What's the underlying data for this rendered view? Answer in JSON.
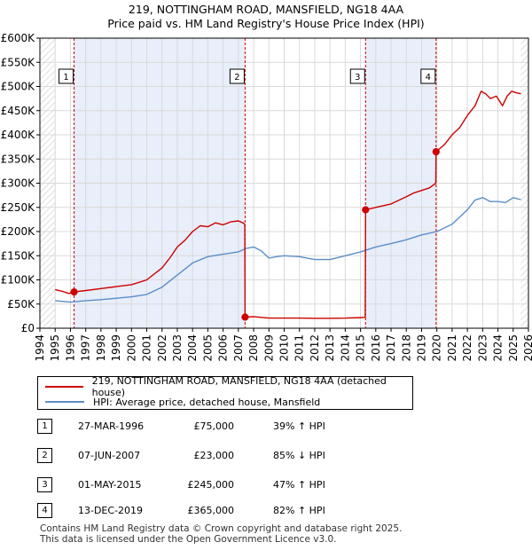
{
  "header": {
    "title": "219, NOTTINGHAM ROAD, MANSFIELD, NG18 4AA",
    "subtitle": "Price paid vs. HM Land Registry's House Price Index (HPI)"
  },
  "colors": {
    "property_line": "#cc0000",
    "hpi_line": "#5b8ec8",
    "shade": "#e8eefa",
    "hatch": "#c8c8c8",
    "grid": "#d9d9d9",
    "vline": "#cc0000"
  },
  "chart_data": {
    "type": "line",
    "title": "219, NOTTINGHAM ROAD, MANSFIELD, NG18 4AA",
    "subtitle": "Price paid vs. HM Land Registry's House Price Index (HPI)",
    "xlim": [
      1994,
      2026
    ],
    "ylim": [
      0,
      600000
    ],
    "x_ticks": [
      1994,
      1995,
      1996,
      1997,
      1998,
      1999,
      2000,
      2001,
      2002,
      2003,
      2004,
      2005,
      2006,
      2007,
      2008,
      2009,
      2010,
      2011,
      2012,
      2013,
      2014,
      2015,
      2016,
      2017,
      2018,
      2019,
      2020,
      2021,
      2022,
      2023,
      2024,
      2025,
      2026
    ],
    "y_ticks": [
      {
        "value": 0,
        "label": "£0"
      },
      {
        "value": 50000,
        "label": "£50K"
      },
      {
        "value": 100000,
        "label": "£100K"
      },
      {
        "value": 150000,
        "label": "£150K"
      },
      {
        "value": 200000,
        "label": "£200K"
      },
      {
        "value": 250000,
        "label": "£250K"
      },
      {
        "value": 300000,
        "label": "£300K"
      },
      {
        "value": 350000,
        "label": "£350K"
      },
      {
        "value": 400000,
        "label": "£400K"
      },
      {
        "value": 450000,
        "label": "£450K"
      },
      {
        "value": 500000,
        "label": "£500K"
      },
      {
        "value": 550000,
        "label": "£550K"
      },
      {
        "value": 600000,
        "label": "£600K"
      }
    ],
    "data_start": 1995,
    "data_end": 2025.5,
    "shaded_ranges": [
      [
        1996.24,
        2007.44
      ],
      [
        2015.33,
        2019.95
      ]
    ],
    "series": [
      {
        "name": "219, NOTTINGHAM ROAD, MANSFIELD, NG18 4AA (detached house)",
        "color": "#cc0000",
        "points": [
          [
            1995.0,
            80000
          ],
          [
            1995.5,
            76000
          ],
          [
            1995.9,
            72000
          ],
          [
            1996.24,
            75000
          ],
          [
            1997.0,
            78000
          ],
          [
            1998.0,
            82000
          ],
          [
            1999.0,
            86000
          ],
          [
            2000.0,
            90000
          ],
          [
            2001.0,
            100000
          ],
          [
            2002.0,
            125000
          ],
          [
            2002.5,
            145000
          ],
          [
            2003.0,
            168000
          ],
          [
            2003.5,
            182000
          ],
          [
            2004.0,
            200000
          ],
          [
            2004.5,
            212000
          ],
          [
            2005.0,
            210000
          ],
          [
            2005.5,
            218000
          ],
          [
            2006.0,
            214000
          ],
          [
            2006.5,
            220000
          ],
          [
            2007.0,
            222000
          ],
          [
            2007.3,
            218000
          ],
          [
            2007.42,
            215000
          ],
          [
            2007.44,
            23000
          ],
          [
            2008.0,
            24000
          ],
          [
            2009.0,
            21000
          ],
          [
            2010.0,
            21000
          ],
          [
            2011.0,
            21000
          ],
          [
            2012.0,
            20500
          ],
          [
            2013.0,
            20500
          ],
          [
            2014.0,
            21000
          ],
          [
            2015.0,
            22000
          ],
          [
            2015.31,
            22500
          ],
          [
            2015.33,
            245000
          ],
          [
            2016.0,
            250000
          ],
          [
            2017.0,
            257000
          ],
          [
            2018.0,
            272000
          ],
          [
            2018.5,
            280000
          ],
          [
            2019.0,
            285000
          ],
          [
            2019.5,
            290000
          ],
          [
            2019.93,
            300000
          ],
          [
            2019.95,
            365000
          ],
          [
            2020.5,
            380000
          ],
          [
            2021.0,
            400000
          ],
          [
            2021.5,
            415000
          ],
          [
            2022.0,
            440000
          ],
          [
            2022.5,
            460000
          ],
          [
            2022.9,
            490000
          ],
          [
            2023.2,
            485000
          ],
          [
            2023.5,
            475000
          ],
          [
            2023.9,
            480000
          ],
          [
            2024.3,
            460000
          ],
          [
            2024.6,
            480000
          ],
          [
            2024.9,
            490000
          ],
          [
            2025.2,
            487000
          ],
          [
            2025.5,
            485000
          ]
        ]
      },
      {
        "name": "HPI: Average price, detached house, Mansfield",
        "color": "#5b8ec8",
        "points": [
          [
            1995.0,
            57000
          ],
          [
            1996.0,
            54000
          ],
          [
            1997.0,
            57000
          ],
          [
            1998.0,
            59000
          ],
          [
            1999.0,
            62000
          ],
          [
            2000.0,
            65000
          ],
          [
            2001.0,
            70000
          ],
          [
            2002.0,
            85000
          ],
          [
            2003.0,
            110000
          ],
          [
            2004.0,
            135000
          ],
          [
            2005.0,
            148000
          ],
          [
            2006.0,
            153000
          ],
          [
            2007.0,
            158000
          ],
          [
            2007.5,
            165000
          ],
          [
            2008.0,
            168000
          ],
          [
            2008.5,
            160000
          ],
          [
            2009.0,
            145000
          ],
          [
            2009.5,
            148000
          ],
          [
            2010.0,
            150000
          ],
          [
            2011.0,
            148000
          ],
          [
            2012.0,
            142000
          ],
          [
            2013.0,
            142000
          ],
          [
            2014.0,
            150000
          ],
          [
            2015.0,
            158000
          ],
          [
            2016.0,
            168000
          ],
          [
            2017.0,
            175000
          ],
          [
            2018.0,
            183000
          ],
          [
            2019.0,
            193000
          ],
          [
            2020.0,
            200000
          ],
          [
            2021.0,
            215000
          ],
          [
            2022.0,
            245000
          ],
          [
            2022.5,
            265000
          ],
          [
            2023.0,
            270000
          ],
          [
            2023.5,
            262000
          ],
          [
            2024.0,
            262000
          ],
          [
            2024.5,
            260000
          ],
          [
            2025.0,
            270000
          ],
          [
            2025.5,
            266000
          ]
        ]
      }
    ],
    "transactions": [
      {
        "id": "1",
        "date": "27-MAR-1996",
        "x": 1996.24,
        "price": 75000,
        "price_label": "£75,000",
        "hpi": "39% ↑ HPI"
      },
      {
        "id": "2",
        "date": "07-JUN-2007",
        "x": 2007.44,
        "price": 23000,
        "price_label": "£23,000",
        "hpi": "85% ↓ HPI"
      },
      {
        "id": "3",
        "date": "01-MAY-2015",
        "x": 2015.33,
        "price": 245000,
        "price_label": "£245,000",
        "hpi": "47% ↑ HPI"
      },
      {
        "id": "4",
        "date": "13-DEC-2019",
        "x": 2019.95,
        "price": 365000,
        "price_label": "£365,000",
        "hpi": "82% ↑ HPI"
      }
    ],
    "box_labels": [
      "1",
      "2",
      "3",
      "4"
    ]
  },
  "legend": {
    "property_label": "219, NOTTINGHAM ROAD, MANSFIELD, NG18 4AA (detached house)",
    "hpi_label": "HPI: Average price, detached house, Mansfield"
  },
  "footer": {
    "line1": "Contains HM Land Registry data © Crown copyright and database right 2025.",
    "line2": "This data is licensed under the Open Government Licence v3.0."
  }
}
